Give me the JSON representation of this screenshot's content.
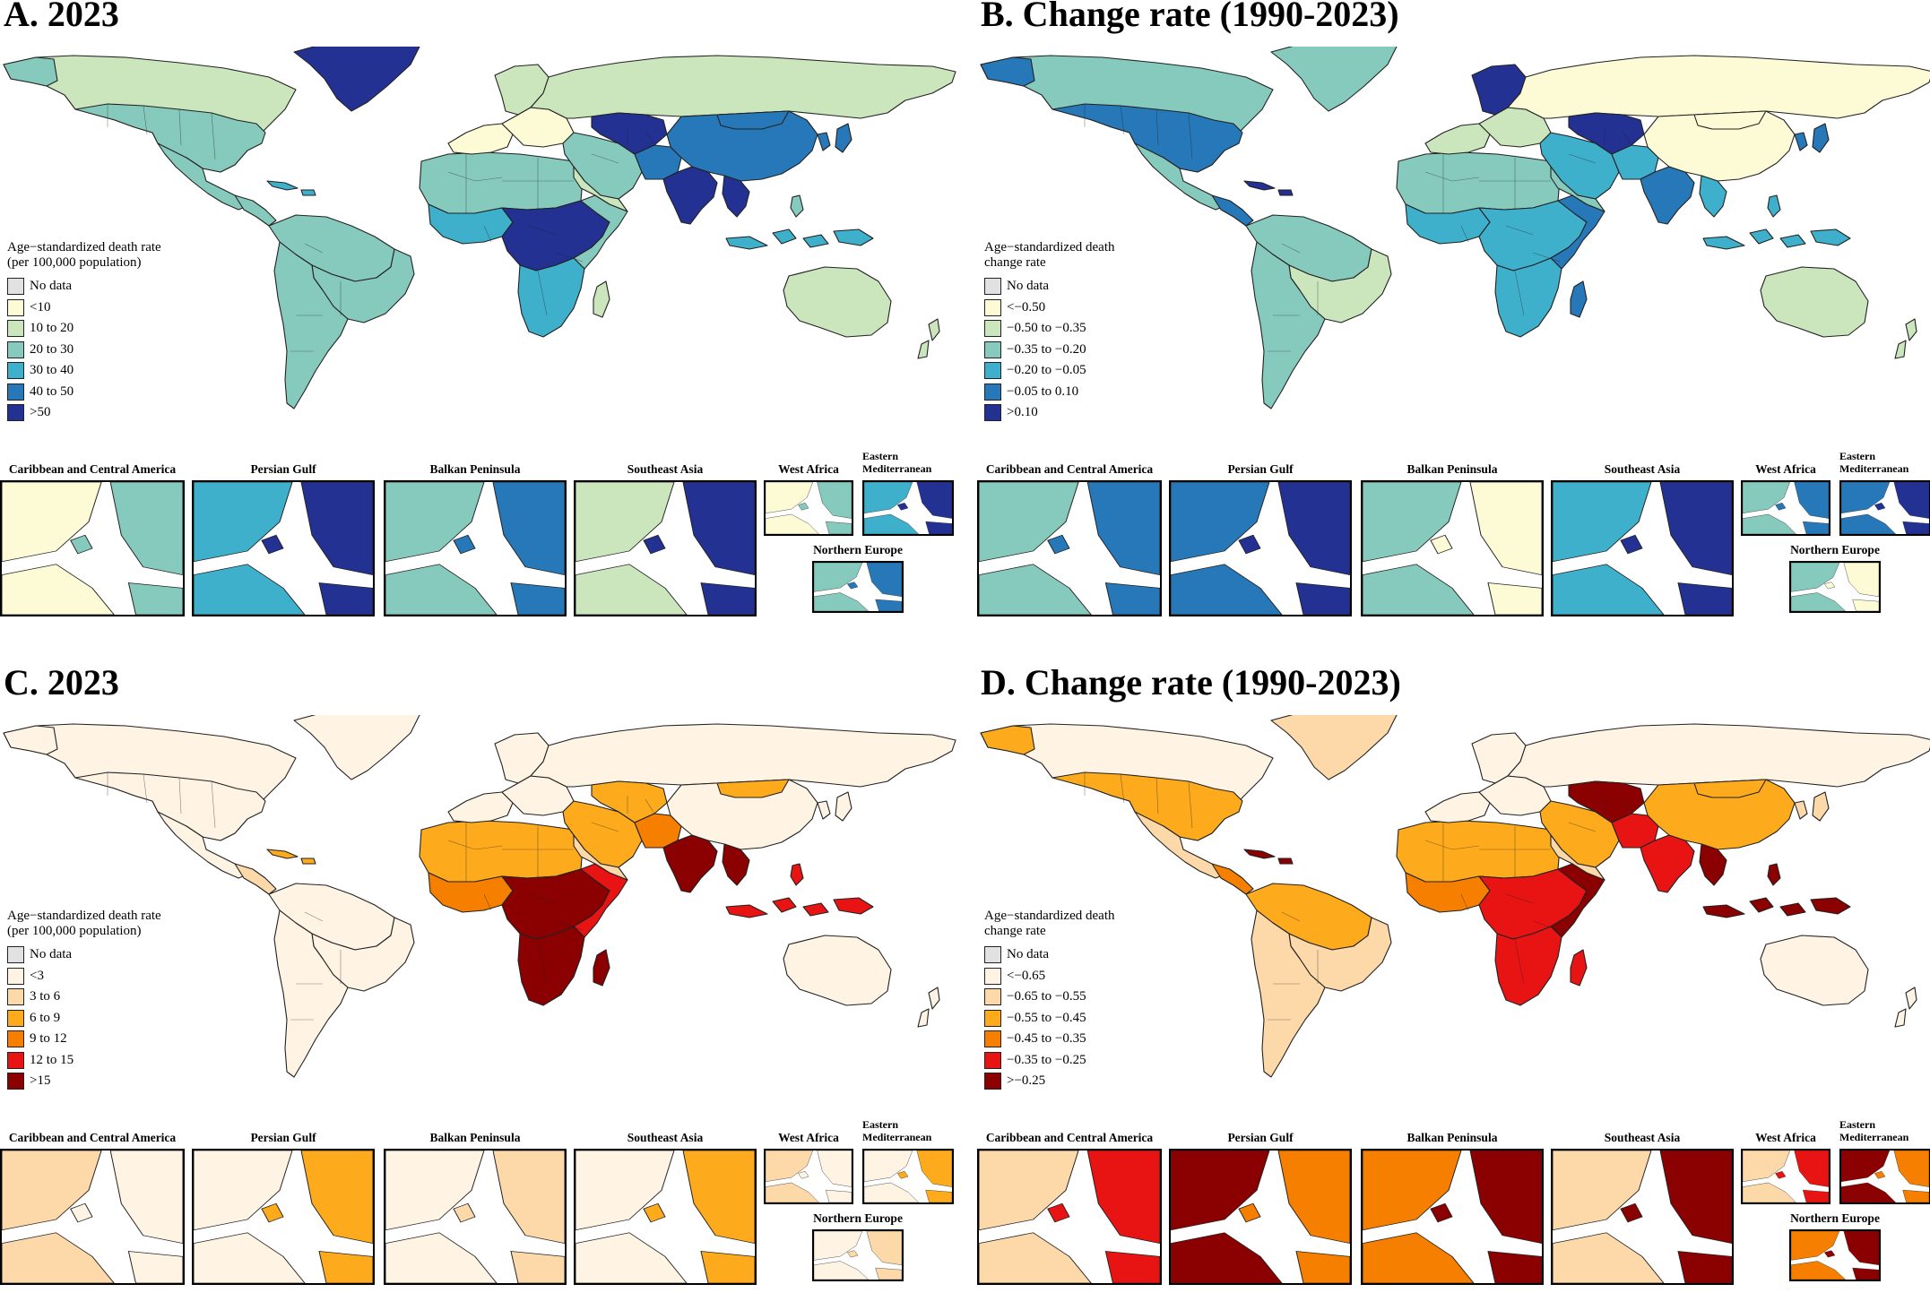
{
  "panels": [
    {
      "title": "A. 2023",
      "legend_title_line1": "Age−standardized death rate",
      "legend_title_line2": "(per 100,000 population)",
      "legend": [
        {
          "label": "No data",
          "color": "#e1e1e1"
        },
        {
          "label": "<10",
          "color": "#fdfbd6"
        },
        {
          "label": "10 to 20",
          "color": "#cbe6bd"
        },
        {
          "label": "20 to 30",
          "color": "#86cabd"
        },
        {
          "label": "30 to 40",
          "color": "#3fb0cb"
        },
        {
          "label": "40 to 50",
          "color": "#2778b9"
        },
        {
          "label": ">50",
          "color": "#233193"
        }
      ],
      "insets": [
        "Caribbean and Central America",
        "Persian Gulf",
        "Balkan Peninsula",
        "Southeast Asia",
        "West Africa",
        "Eastern Mediterranean",
        "Northern Europe"
      ]
    },
    {
      "title": "B. Change rate (1990-2023)",
      "legend_title_line1": "Age−standardized death",
      "legend_title_line2": "change rate",
      "legend": [
        {
          "label": "No data",
          "color": "#e1e1e1"
        },
        {
          "label": "<−0.50",
          "color": "#fdfbd6"
        },
        {
          "label": "−0.50 to −0.35",
          "color": "#cbe6bd"
        },
        {
          "label": "−0.35 to −0.20",
          "color": "#86cabd"
        },
        {
          "label": "−0.20 to −0.05",
          "color": "#3fb0cb"
        },
        {
          "label": "−0.05 to 0.10",
          "color": "#2778b9"
        },
        {
          "label": ">0.10",
          "color": "#233193"
        }
      ],
      "insets": [
        "Caribbean and Central America",
        "Persian Gulf",
        "Balkan Peninsula",
        "Southeast Asia",
        "West Africa",
        "Eastern Mediterranean",
        "Northern Europe"
      ]
    },
    {
      "title": "C. 2023",
      "legend_title_line1": "Age−standardized death rate",
      "legend_title_line2": "(per 100,000 population)",
      "legend": [
        {
          "label": "No data",
          "color": "#e1e1e1"
        },
        {
          "label": "<3",
          "color": "#fff4e4"
        },
        {
          "label": "3 to 6",
          "color": "#fdd9a9"
        },
        {
          "label": "6 to 9",
          "color": "#fdaa1c"
        },
        {
          "label": "9 to 12",
          "color": "#f67f00"
        },
        {
          "label": "12 to 15",
          "color": "#e81313"
        },
        {
          "label": ">15",
          "color": "#8b0000"
        }
      ],
      "insets": [
        "Caribbean and Central America",
        "Persian Gulf",
        "Balkan Peninsula",
        "Southeast Asia",
        "West Africa",
        "Eastern Mediterranean",
        "Northern Europe"
      ]
    },
    {
      "title": "D. Change rate (1990-2023)",
      "legend_title_line1": "Age−standardized death",
      "legend_title_line2": "change rate",
      "legend": [
        {
          "label": "No data",
          "color": "#e1e1e1"
        },
        {
          "label": "<−0.65",
          "color": "#fff4e4"
        },
        {
          "label": "−0.65 to −0.55",
          "color": "#fdd9a9"
        },
        {
          "label": "−0.55 to −0.45",
          "color": "#fdaa1c"
        },
        {
          "label": "−0.45 to −0.35",
          "color": "#f67f00"
        },
        {
          "label": "−0.35 to −0.25",
          "color": "#e81313"
        },
        {
          "label": ">−0.25",
          "color": "#8b0000"
        }
      ],
      "insets": [
        "Caribbean and Central America",
        "Persian Gulf",
        "Balkan Peninsula",
        "Southeast Asia",
        "West Africa",
        "Eastern Mediterranean",
        "Northern Europe"
      ]
    }
  ]
}
